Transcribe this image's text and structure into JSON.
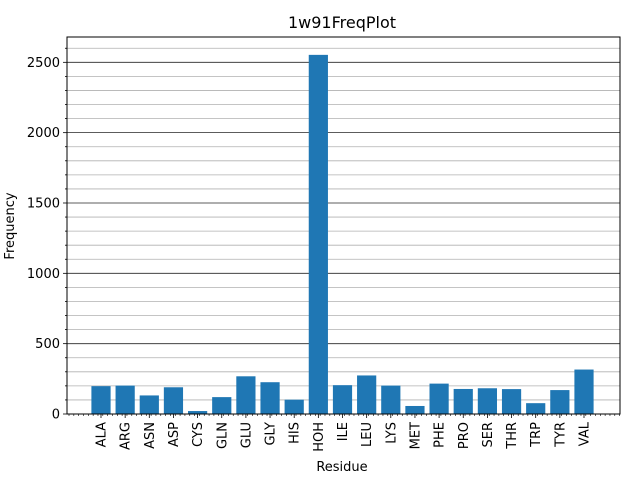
{
  "chart_data": {
    "type": "bar",
    "title": "1w91FreqPlot",
    "xlabel": "Residue",
    "ylabel": "Frequency",
    "ylim": [
      0,
      2680
    ],
    "yticks": [
      0,
      500,
      1000,
      1500,
      2000,
      2500
    ],
    "minor_ytick_step": 100,
    "grid": true,
    "bar_color": "#1f77b4",
    "categories": [
      "ALA",
      "ARG",
      "ASN",
      "ASP",
      "CYS",
      "GLN",
      "GLU",
      "GLY",
      "HIS",
      "HOH",
      "ILE",
      "LEU",
      "LYS",
      "MET",
      "PHE",
      "PRO",
      "SER",
      "THR",
      "TRP",
      "TYR",
      "VAL"
    ],
    "values": [
      198,
      202,
      132,
      190,
      21,
      120,
      268,
      226,
      102,
      2553,
      205,
      274,
      202,
      57,
      216,
      178,
      183,
      177,
      77,
      170,
      316
    ]
  }
}
